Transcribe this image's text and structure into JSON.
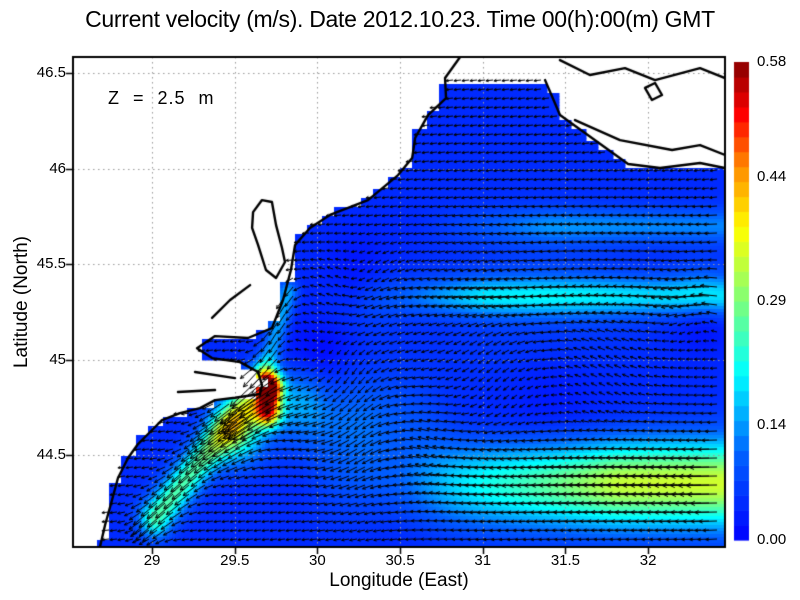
{
  "figure": {
    "title": "Current velocity (m/s). Date 2012.10.23. Time 00(h):00(m) GMT",
    "annotation": "Z = 2.5 m",
    "units": "m/s",
    "date": "2012.10.23",
    "time": "00(h):00(m) GMT",
    "depth_label": "Z = 2.5 m"
  },
  "axes": {
    "x": {
      "label": "Longitude (East)",
      "tick_values": [
        29,
        29.5,
        30,
        30.5,
        31,
        31.5,
        32
      ],
      "tick_labels": [
        "29",
        "29.5",
        "30",
        "30.5",
        "31",
        "31.5",
        "32"
      ],
      "range": [
        28.522,
        32.465
      ]
    },
    "y": {
      "label": "Latitude (North)",
      "tick_values": [
        44.5,
        45,
        45.5,
        46,
        46.5
      ],
      "tick_labels": [
        "44.5",
        "45",
        "45.5",
        "46",
        "46.5"
      ],
      "range": [
        44.019,
        46.584
      ]
    },
    "grid": true,
    "grid_color": "#9a9a9a"
  },
  "colorbar": {
    "min": 0,
    "max": 0.58,
    "steps": 32,
    "tick_values": [
      0.58,
      0.44,
      0.29,
      0.14,
      0.0
    ],
    "tick_labels": [
      "0.58",
      "0.44",
      "0.29",
      "0.14",
      "0.00"
    ]
  },
  "chart_data": {
    "type": "heatmap",
    "subtype": "quiver_vector_field",
    "title": "Current velocity (m/s). Date 2012.10.23. Time 00(h):00(m) GMT",
    "xlabel": "Longitude (East)",
    "ylabel": "Latitude (North)",
    "units": "m/s",
    "speed_range": [
      0,
      0.58
    ],
    "lon_range": [
      28.522,
      32.465
    ],
    "lat_range": [
      44.019,
      46.584
    ],
    "cell_deg": [
      0.08,
      0.05
    ],
    "grid_anchor": [
      28.5,
      44.0
    ],
    "arrow_px_spacing": [
      8,
      9
    ],
    "arrow_scale": 80,
    "arrow_color": "#000000",
    "colormap": {
      "name": "jet",
      "stops": [
        [
          0.0,
          "#0000ff"
        ],
        [
          0.18,
          "#0060ff"
        ],
        [
          0.35,
          "#00ffff"
        ],
        [
          0.5,
          "#7dff7a"
        ],
        [
          0.65,
          "#ffff00"
        ],
        [
          0.78,
          "#ff8c00"
        ],
        [
          0.89,
          "#ff0000"
        ],
        [
          1.0,
          "#860000"
        ]
      ]
    },
    "field_model": {
      "base_flow": {
        "u": -0.045,
        "v": -0.005
      },
      "bands": [
        {
          "lat0": 44.35,
          "sigma": 0.22,
          "amp": -0.3,
          "ramp": [
            29.9,
            31.8
          ]
        },
        {
          "lat0": 45.33,
          "sigma": 0.1,
          "amp": -0.13,
          "ramp": [
            30.2,
            31.0
          ]
        },
        {
          "lat0": 45.7,
          "sigma": 0.09,
          "amp": -0.08,
          "ramp": [
            30.6,
            31.4
          ]
        }
      ],
      "coastal_jets": [
        {
          "a": [
            29.67,
            44.88
          ],
          "b": [
            29.02,
            44.17
          ],
          "sigma": 0.1,
          "amp": 0.22
        },
        {
          "a": [
            29.82,
            45.35
          ],
          "b": [
            29.68,
            44.92
          ],
          "sigma": 0.07,
          "amp": 0.13
        }
      ],
      "vortices": [
        {
          "lon": 30.05,
          "lat": 44.83,
          "sigma": 0.28,
          "k": -0.05
        },
        {
          "lon": 30.5,
          "lat": 44.52,
          "sigma": 0.3,
          "k": 0.045
        },
        {
          "lon": 31.4,
          "lat": 45.0,
          "sigma": 0.5,
          "k": 0.03
        },
        {
          "lon": 30.25,
          "lat": 45.35,
          "sigma": 0.22,
          "k": -0.025
        },
        {
          "lon": 32.33,
          "lat": 45.3,
          "sigma": 0.18,
          "k": 0.03
        }
      ],
      "jets": [
        {
          "lon": 29.71,
          "lat": 44.85,
          "sigma": 0.07,
          "dir": [
            -0.85,
            -0.53
          ],
          "amp": 0.5
        },
        {
          "lon": 29.7,
          "lat": 44.73,
          "sigma": 0.08,
          "dir": [
            -0.8,
            -0.6
          ],
          "amp": 0.42
        },
        {
          "lon": 29.52,
          "lat": 44.62,
          "sigma": 0.16,
          "dir": [
            -0.82,
            -0.57
          ],
          "amp": 0.2
        },
        {
          "lon": 29.88,
          "lat": 44.8,
          "sigma": 0.18,
          "dir": [
            -0.71,
            -0.7
          ],
          "amp": 0.12
        }
      ]
    },
    "coastline": {
      "land_polygons": [
        [
          [
            28.522,
            46.584
          ],
          [
            30.863,
            46.584
          ],
          [
            30.772,
            46.474
          ],
          [
            30.778,
            46.369
          ],
          [
            30.669,
            46.28
          ],
          [
            30.591,
            46.16
          ],
          [
            30.573,
            46.055
          ],
          [
            30.488,
            45.966
          ],
          [
            30.306,
            45.835
          ],
          [
            30.076,
            45.757
          ],
          [
            29.955,
            45.689
          ],
          [
            29.865,
            45.6
          ],
          [
            29.84,
            45.469
          ],
          [
            29.792,
            45.312
          ],
          [
            29.725,
            45.165
          ],
          [
            29.58,
            45.113
          ],
          [
            29.381,
            45.123
          ],
          [
            29.272,
            45.06
          ],
          [
            29.363,
            45.008
          ],
          [
            29.532,
            44.987
          ],
          [
            29.641,
            44.935
          ],
          [
            29.665,
            44.867
          ],
          [
            29.653,
            44.82
          ],
          [
            29.502,
            44.8
          ],
          [
            29.381,
            44.788
          ],
          [
            29.29,
            44.746
          ],
          [
            29.169,
            44.72
          ],
          [
            29.06,
            44.683
          ],
          [
            28.988,
            44.621
          ],
          [
            28.915,
            44.558
          ],
          [
            28.855,
            44.485
          ],
          [
            28.794,
            44.38
          ],
          [
            28.758,
            44.265
          ],
          [
            28.716,
            44.134
          ],
          [
            28.685,
            44.019
          ],
          [
            28.522,
            44.019
          ]
        ],
        [
          [
            31.377,
            46.584
          ],
          [
            32.465,
            46.584
          ],
          [
            32.465,
            46.003
          ],
          [
            31.879,
            46.024
          ],
          [
            31.467,
            46.28
          ],
          [
            31.377,
            46.463
          ]
        ],
        [
          [
            30.772,
            46.584
          ],
          [
            31.377,
            46.584
          ],
          [
            31.377,
            46.474
          ],
          [
            30.772,
            46.474
          ]
        ],
        [
          [
            29.611,
            45.772
          ],
          [
            29.665,
            45.835
          ],
          [
            29.725,
            45.825
          ],
          [
            29.75,
            45.704
          ],
          [
            29.786,
            45.584
          ],
          [
            29.804,
            45.511
          ],
          [
            29.75,
            45.427
          ],
          [
            29.689,
            45.469
          ],
          [
            29.641,
            45.6
          ],
          [
            29.605,
            45.689
          ]
        ]
      ],
      "coast_lines": [
        {
          "closed": false,
          "points": [
            [
              30.863,
              46.584
            ],
            [
              30.772,
              46.474
            ],
            [
              30.778,
              46.369
            ],
            [
              30.669,
              46.28
            ],
            [
              30.591,
              46.16
            ],
            [
              30.573,
              46.055
            ],
            [
              30.488,
              45.966
            ],
            [
              30.306,
              45.835
            ],
            [
              30.076,
              45.757
            ],
            [
              29.955,
              45.689
            ],
            [
              29.865,
              45.6
            ],
            [
              29.84,
              45.469
            ],
            [
              29.792,
              45.312
            ],
            [
              29.725,
              45.165
            ],
            [
              29.58,
              45.113
            ],
            [
              29.381,
              45.123
            ],
            [
              29.272,
              45.06
            ],
            [
              29.363,
              45.008
            ],
            [
              29.532,
              44.987
            ],
            [
              29.641,
              44.935
            ],
            [
              29.665,
              44.867
            ],
            [
              29.653,
              44.82
            ],
            [
              29.502,
              44.8
            ],
            [
              29.381,
              44.788
            ],
            [
              29.29,
              44.746
            ],
            [
              29.169,
              44.72
            ],
            [
              29.06,
              44.683
            ],
            [
              28.988,
              44.621
            ],
            [
              28.915,
              44.558
            ],
            [
              28.855,
              44.485
            ],
            [
              28.794,
              44.38
            ],
            [
              28.758,
              44.265
            ],
            [
              28.716,
              44.134
            ],
            [
              28.685,
              44.019
            ]
          ]
        },
        {
          "closed": true,
          "points": [
            [
              29.611,
              45.772
            ],
            [
              29.665,
              45.835
            ],
            [
              29.725,
              45.825
            ],
            [
              29.75,
              45.704
            ],
            [
              29.786,
              45.584
            ],
            [
              29.804,
              45.511
            ],
            [
              29.75,
              45.427
            ],
            [
              29.689,
              45.469
            ],
            [
              29.641,
              45.6
            ],
            [
              29.605,
              45.689
            ]
          ]
        },
        {
          "closed": false,
          "points": [
            [
              29.593,
              45.39
            ],
            [
              29.472,
              45.312
            ],
            [
              29.363,
              45.218
            ]
          ]
        },
        {
          "closed": false,
          "points": [
            [
              31.377,
              46.463
            ],
            [
              31.467,
              46.28
            ],
            [
              31.879,
              46.024
            ],
            [
              32.072,
              46.003
            ],
            [
              32.314,
              46.029
            ],
            [
              32.465,
              46.003
            ]
          ]
        },
        {
          "closed": false,
          "points": [
            [
              31.467,
              46.568
            ],
            [
              31.648,
              46.49
            ],
            [
              31.86,
              46.526
            ],
            [
              32.042,
              46.463
            ],
            [
              32.314,
              46.526
            ],
            [
              32.465,
              46.474
            ]
          ]
        },
        {
          "closed": false,
          "points": [
            [
              31.558,
              46.254
            ],
            [
              31.83,
              46.149
            ],
            [
              32.145,
              46.097
            ],
            [
              32.314,
              46.123
            ],
            [
              32.465,
              46.071
            ]
          ]
        },
        {
          "closed": true,
          "points": [
            [
              31.981,
              46.422
            ],
            [
              32.042,
              46.448
            ],
            [
              32.084,
              46.385
            ],
            [
              32.023,
              46.359
            ]
          ]
        },
        {
          "closed": false,
          "points": [
            [
              29.26,
              44.935
            ],
            [
              29.502,
              44.903
            ]
          ]
        },
        {
          "closed": false,
          "points": [
            [
              29.157,
              44.83
            ],
            [
              29.381,
              44.841
            ]
          ]
        }
      ]
    }
  }
}
